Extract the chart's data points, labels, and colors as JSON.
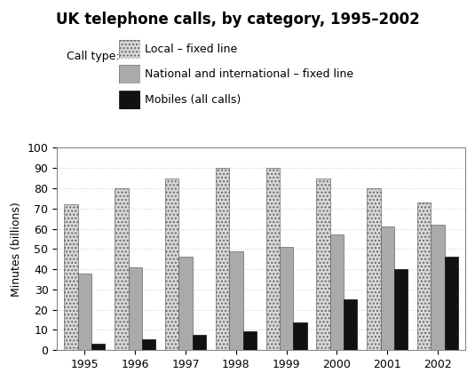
{
  "title": "UK telephone calls, by category, 1995–2002",
  "ylabel": "Minutes (billions)",
  "years": [
    1995,
    1996,
    1997,
    1998,
    1999,
    2000,
    2001,
    2002
  ],
  "local_fixed": [
    72,
    80,
    85,
    90,
    90,
    85,
    80,
    73
  ],
  "national_fixed": [
    38,
    41,
    46,
    49,
    51,
    57,
    61,
    62
  ],
  "mobiles": [
    3,
    5.5,
    7.5,
    9.5,
    13.5,
    25,
    40,
    46
  ],
  "ylim": [
    0,
    100
  ],
  "yticks": [
    0,
    10,
    20,
    30,
    40,
    50,
    60,
    70,
    80,
    90,
    100
  ],
  "legend_labels": [
    "Local – fixed line",
    "National and international – fixed line",
    "Mobiles (all calls)"
  ],
  "legend_title": "Call type:",
  "bar_width": 0.27,
  "title_fontsize": 12,
  "axis_fontsize": 9,
  "legend_fontsize": 9,
  "background_color": "#ffffff",
  "grid_color": "#cccccc"
}
